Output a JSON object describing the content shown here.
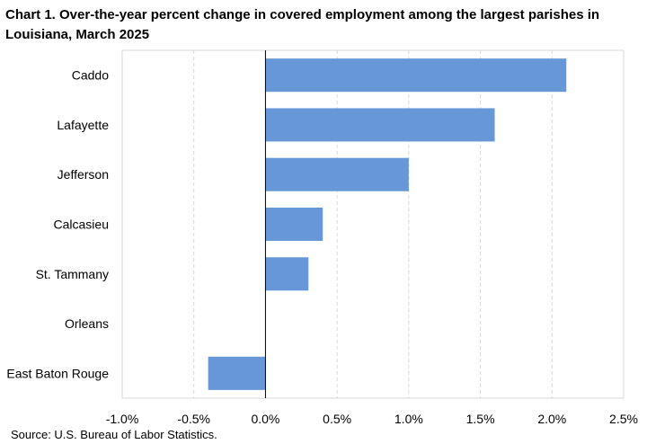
{
  "chart_data": {
    "type": "bar",
    "orientation": "horizontal",
    "title": "Chart 1. Over-the-year percent change in covered employment among the largest parishes in Louisiana, March 2025",
    "categories": [
      "Caddo",
      "Lafayette",
      "Jefferson",
      "Calcasieu",
      "St. Tammany",
      "Orleans",
      "East Baton Rouge"
    ],
    "values": [
      2.1,
      1.6,
      1.0,
      0.4,
      0.3,
      0.0,
      -0.4
    ],
    "xlim": [
      -1.0,
      2.5
    ],
    "xticks": [
      -1.0,
      -0.5,
      0.0,
      0.5,
      1.0,
      1.5,
      2.0,
      2.5
    ],
    "xtick_labels": [
      "-1.0%",
      "-0.5%",
      "0.0%",
      "0.5%",
      "1.0%",
      "1.5%",
      "2.0%",
      "2.5%"
    ],
    "xlabel": "",
    "ylabel": "",
    "grid": "vertical dashed",
    "bar_color": "#6797d6",
    "source": "Source: U.S. Bureau of Labor Statistics."
  }
}
